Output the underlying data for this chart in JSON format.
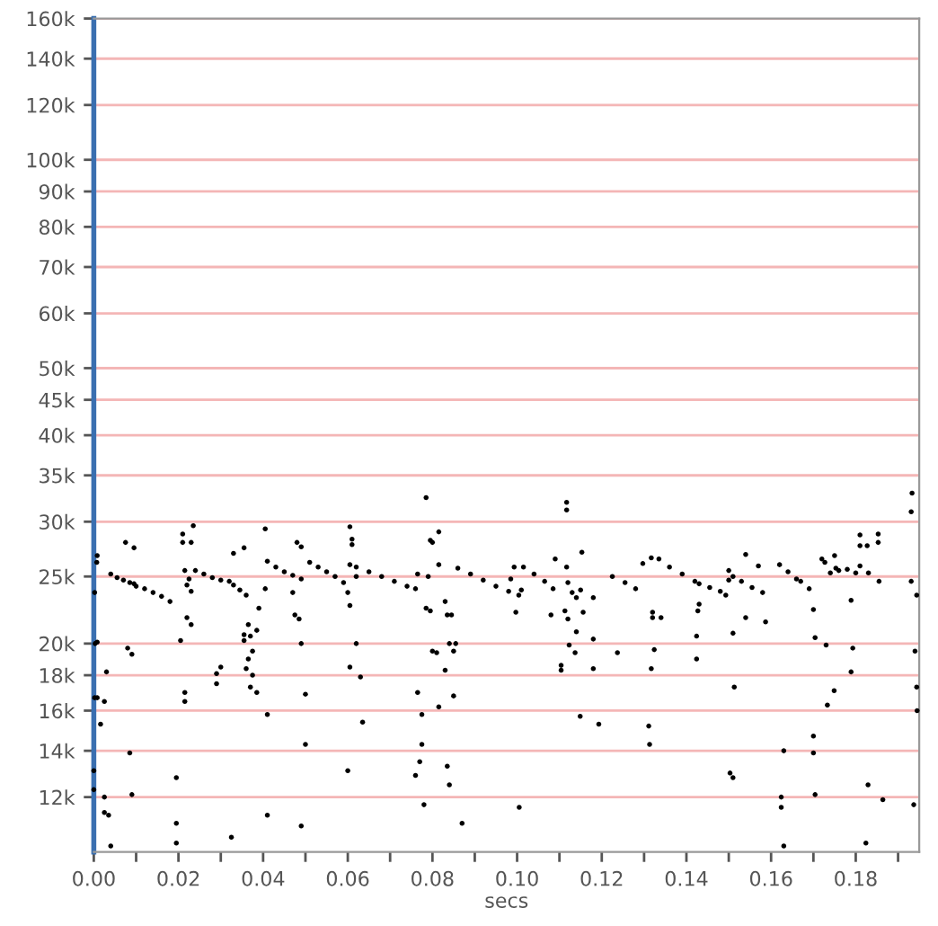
{
  "chart_data": {
    "type": "scatter",
    "xlabel": "secs",
    "xlim": [
      0,
      0.195
    ],
    "ylim": [
      10000,
      160000
    ],
    "log": "y",
    "grid": "y",
    "marker": "circle",
    "xticks": [
      {
        "value": 0.0,
        "label": "0.00"
      },
      {
        "value": 0.01,
        "label": null
      },
      {
        "value": 0.02,
        "label": "0.02"
      },
      {
        "value": 0.03,
        "label": null
      },
      {
        "value": 0.04,
        "label": "0.04"
      },
      {
        "value": 0.05,
        "label": null
      },
      {
        "value": 0.06,
        "label": "0.06"
      },
      {
        "value": 0.07,
        "label": null
      },
      {
        "value": 0.08,
        "label": "0.08"
      },
      {
        "value": 0.09,
        "label": null
      },
      {
        "value": 0.1,
        "label": "0.10"
      },
      {
        "value": 0.11,
        "label": null
      },
      {
        "value": 0.12,
        "label": "0.12"
      },
      {
        "value": 0.13,
        "label": null
      },
      {
        "value": 0.14,
        "label": "0.14"
      },
      {
        "value": 0.15,
        "label": null
      },
      {
        "value": 0.16,
        "label": "0.16"
      },
      {
        "value": 0.17,
        "label": null
      },
      {
        "value": 0.18,
        "label": "0.18"
      },
      {
        "value": 0.19,
        "label": null
      }
    ],
    "yticks": [
      {
        "value": 12000,
        "label": "12k"
      },
      {
        "value": 14000,
        "label": "14k"
      },
      {
        "value": 16000,
        "label": "16k"
      },
      {
        "value": 18000,
        "label": "18k"
      },
      {
        "value": 20000,
        "label": "20k"
      },
      {
        "value": 25000,
        "label": "25k"
      },
      {
        "value": 30000,
        "label": "30k"
      },
      {
        "value": 35000,
        "label": "35k"
      },
      {
        "value": 40000,
        "label": "40k"
      },
      {
        "value": 45000,
        "label": "45k"
      },
      {
        "value": 50000,
        "label": "50k"
      },
      {
        "value": 60000,
        "label": "60k"
      },
      {
        "value": 70000,
        "label": "70k"
      },
      {
        "value": 80000,
        "label": "80k"
      },
      {
        "value": 90000,
        "label": "90k"
      },
      {
        "value": 100000,
        "label": "100k"
      },
      {
        "value": 120000,
        "label": "120k"
      },
      {
        "value": 140000,
        "label": "140k"
      },
      {
        "value": 160000,
        "label": "160k"
      }
    ],
    "series": [
      {
        "color": "#000000",
        "x": [
          0.004,
          0.0055,
          0.007,
          0.0085,
          0.0095,
          0.01,
          0.012,
          0.014,
          0.016,
          0.018,
          0.0215,
          0.0225,
          0.024,
          0.026,
          0.028,
          0.03,
          0.032,
          0.033,
          0.0345,
          0.036,
          0.041,
          0.043,
          0.045,
          0.047,
          0.049,
          0.051,
          0.053,
          0.055,
          0.057,
          0.059,
          0.06,
          0.062,
          0.065,
          0.068,
          0.071,
          0.074,
          0.076,
          0.086,
          0.089,
          0.092,
          0.095,
          0.098,
          0.0985,
          0.101,
          0.1015,
          0.104,
          0.1065,
          0.1085,
          0.112,
          0.115,
          0.118,
          0.1225,
          0.1255,
          0.128,
          0.1335,
          0.136,
          0.139,
          0.142,
          0.143,
          0.1455,
          0.148,
          0.151,
          0.153,
          0.1555,
          0.158,
          0.162,
          0.164,
          0.166,
          0.167,
          0.169,
          0.172,
          0.174,
          0.175,
          0.176,
          0.178,
          0.18,
          0.181,
          0.183,
          0.1855,
          0.0002,
          0.0007,
          0.0008,
          0.0003,
          0.0008,
          0.0002,
          0.0008,
          0.0016,
          0.0025,
          0.003,
          0.0,
          0.0,
          0.0025,
          0.0035,
          0.0025,
          0.004,
          0.0075,
          0.0095,
          0.008,
          0.009,
          0.0085,
          0.009,
          0.0195,
          0.0195,
          0.0195,
          0.0205,
          0.021,
          0.021,
          0.023,
          0.0235,
          0.022,
          0.023,
          0.022,
          0.023,
          0.0215,
          0.0215,
          0.029,
          0.029,
          0.03,
          0.033,
          0.0325,
          0.0355,
          0.0355,
          0.037,
          0.0365,
          0.0365,
          0.0375,
          0.036,
          0.0375,
          0.037,
          0.0385,
          0.039,
          0.0385,
          0.0355,
          0.0405,
          0.0405,
          0.041,
          0.041,
          0.048,
          0.049,
          0.047,
          0.0475,
          0.0485,
          0.049,
          0.05,
          0.05,
          0.049,
          0.0605,
          0.061,
          0.061,
          0.0605,
          0.062,
          0.0605,
          0.0605,
          0.062,
          0.063,
          0.0635,
          0.06,
          0.0765,
          0.0765,
          0.0775,
          0.0775,
          0.077,
          0.076,
          0.078,
          0.0785,
          0.0795,
          0.08,
          0.0815,
          0.079,
          0.0785,
          0.0795,
          0.08,
          0.081,
          0.0815,
          0.0815,
          0.083,
          0.0835,
          0.084,
          0.083,
          0.0835,
          0.084,
          0.085,
          0.085,
          0.0855,
          0.087,
          0.0845,
          0.0993,
          0.1004,
          0.0997,
          0.1005,
          0.109,
          0.1117,
          0.1117,
          0.1117,
          0.108,
          0.1113,
          0.112,
          0.113,
          0.114,
          0.1104,
          0.1104,
          0.1123,
          0.1137,
          0.114,
          0.1149,
          0.1156,
          0.1153,
          0.118,
          0.118,
          0.1193,
          0.1237,
          0.1297,
          0.1317,
          0.132,
          0.132,
          0.1324,
          0.1317,
          0.1311,
          0.1313,
          0.134,
          0.1424,
          0.143,
          0.1427,
          0.1424,
          0.1493,
          0.15,
          0.15,
          0.151,
          0.1513,
          0.1503,
          0.151,
          0.154,
          0.157,
          0.154,
          0.1587,
          0.163,
          0.1624,
          0.1624,
          0.163,
          0.17,
          0.1704,
          0.17,
          0.17,
          0.1704,
          0.1727,
          0.173,
          0.1733,
          0.1749,
          0.1753,
          0.1793,
          0.1789,
          0.181,
          0.181,
          0.1827,
          0.1853,
          0.1853,
          0.1789,
          0.1824,
          0.1829,
          0.1864,
          0.1933,
          0.1931,
          0.1931,
          0.1944,
          0.194,
          0.1944,
          0.1945,
          0.1937
        ],
        "values": [
          25200,
          24900,
          24700,
          24500,
          24400,
          24200,
          24000,
          23700,
          23400,
          23000,
          25500,
          24800,
          25500,
          25200,
          24900,
          24700,
          24600,
          24300,
          23900,
          23500,
          26300,
          25800,
          25400,
          25100,
          24800,
          26200,
          25800,
          25400,
          25000,
          24500,
          23700,
          25800,
          25400,
          25000,
          24600,
          24200,
          24000,
          25700,
          25200,
          24700,
          24200,
          23800,
          24800,
          23900,
          25800,
          25200,
          24600,
          24000,
          24500,
          23900,
          23300,
          25000,
          24500,
          24000,
          26500,
          25800,
          25200,
          24600,
          24400,
          24100,
          23800,
          25000,
          24600,
          24100,
          23700,
          26000,
          25400,
          24800,
          24600,
          24000,
          26500,
          25300,
          26800,
          25500,
          25600,
          25300,
          25900,
          25300,
          24600,
          23700,
          26200,
          26800,
          20000,
          20100,
          16700,
          16700,
          15300,
          16500,
          18200,
          13100,
          12300,
          11400,
          11300,
          12000,
          10200,
          28000,
          27500,
          19700,
          19300,
          13900,
          12100,
          12800,
          11000,
          10300,
          20200,
          28800,
          28000,
          28000,
          29600,
          24300,
          23800,
          21800,
          21300,
          17000,
          16500,
          17500,
          18100,
          18500,
          27000,
          10500,
          20600,
          20200,
          20500,
          21300,
          19000,
          19500,
          18400,
          18000,
          17300,
          17000,
          22500,
          20900,
          27500,
          29300,
          24000,
          15800,
          11300,
          28000,
          27600,
          23700,
          22000,
          21700,
          20000,
          16900,
          14300,
          10900,
          29500,
          28300,
          27800,
          26000,
          25000,
          22700,
          18500,
          20000,
          17900,
          15400,
          13100,
          25200,
          17000,
          15800,
          14300,
          13500,
          12900,
          11700,
          32500,
          28200,
          28000,
          29000,
          25000,
          22500,
          22300,
          19500,
          19400,
          16200,
          26000,
          23000,
          22000,
          20000,
          18300,
          13300,
          12500,
          16800,
          19500,
          20000,
          11000,
          22000,
          25800,
          23500,
          22200,
          11600,
          26500,
          32000,
          31200,
          25800,
          22000,
          22300,
          21700,
          23700,
          23300,
          18600,
          18300,
          19900,
          19400,
          20800,
          15700,
          22200,
          27100,
          20300,
          18400,
          15300,
          19400,
          26100,
          26600,
          22200,
          21800,
          19600,
          18400,
          15200,
          14300,
          21800,
          20500,
          22800,
          22300,
          19000,
          23500,
          25500,
          24700,
          20700,
          17300,
          13000,
          12800,
          26900,
          25900,
          21800,
          21500,
          14000,
          12000,
          11600,
          10200,
          22400,
          20400,
          14700,
          13900,
          12100,
          26200,
          19900,
          16300,
          17100,
          25700,
          19700,
          18200,
          28700,
          27700,
          27700,
          28800,
          28000,
          23100,
          10300,
          12500,
          11900,
          33000,
          31000,
          24600,
          23500,
          19500,
          17300,
          16000,
          11700
        ]
      }
    ]
  }
}
